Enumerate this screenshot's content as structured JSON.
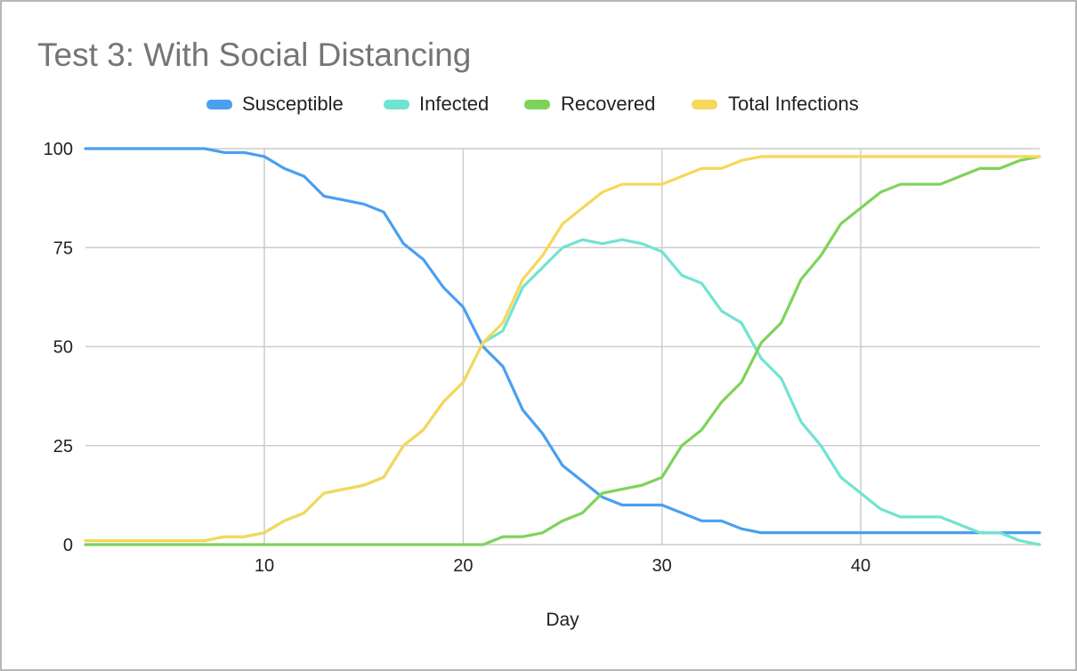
{
  "colors": {
    "susceptible": "#4a9ff0",
    "infected": "#71e3d1",
    "recovered": "#7dd35a",
    "total": "#f6d75a",
    "grid": "#cccccc",
    "frame": "#9e9e9e"
  },
  "chart_data": {
    "type": "line",
    "title": "Test 3: With Social Distancing",
    "xlabel": "Day",
    "ylabel": "",
    "xlim": [
      1,
      49
    ],
    "ylim": [
      0,
      100
    ],
    "x_ticks": [
      "10",
      "20",
      "30",
      "40"
    ],
    "y_ticks": [
      "0",
      "25",
      "50",
      "75",
      "100"
    ],
    "legend_position": "top",
    "grid": true,
    "x": [
      1,
      2,
      3,
      4,
      5,
      6,
      7,
      8,
      9,
      10,
      11,
      12,
      13,
      14,
      15,
      16,
      17,
      18,
      19,
      20,
      21,
      22,
      23,
      24,
      25,
      26,
      27,
      28,
      29,
      30,
      31,
      32,
      33,
      34,
      35,
      36,
      37,
      38,
      39,
      40,
      41,
      42,
      43,
      44,
      45,
      46,
      47,
      48,
      49
    ],
    "series": [
      {
        "name": "Susceptible",
        "values": [
          100,
          100,
          100,
          100,
          100,
          100,
          100,
          99,
          99,
          98,
          95,
          93,
          88,
          87,
          86,
          84,
          76,
          72,
          65,
          60,
          50,
          45,
          34,
          28,
          20,
          16,
          12,
          10,
          10,
          10,
          8,
          6,
          6,
          4,
          3,
          3,
          3,
          3,
          3,
          3,
          3,
          3,
          3,
          3,
          3,
          3,
          3,
          3,
          3
        ]
      },
      {
        "name": "Infected",
        "values": [
          1,
          1,
          1,
          1,
          1,
          1,
          1,
          2,
          2,
          3,
          6,
          8,
          13,
          14,
          15,
          17,
          25,
          29,
          36,
          41,
          51,
          54,
          65,
          70,
          75,
          77,
          76,
          77,
          76,
          74,
          68,
          66,
          59,
          56,
          47,
          42,
          31,
          25,
          17,
          13,
          9,
          7,
          7,
          7,
          5,
          3,
          3,
          1,
          0
        ]
      },
      {
        "name": "Recovered",
        "values": [
          0,
          0,
          0,
          0,
          0,
          0,
          0,
          0,
          0,
          0,
          0,
          0,
          0,
          0,
          0,
          0,
          0,
          0,
          0,
          0,
          0,
          2,
          2,
          3,
          6,
          8,
          13,
          14,
          15,
          17,
          25,
          29,
          36,
          41,
          51,
          56,
          67,
          73,
          81,
          85,
          89,
          91,
          91,
          91,
          93,
          95,
          95,
          97,
          98
        ]
      },
      {
        "name": "Total Infections",
        "values": [
          1,
          1,
          1,
          1,
          1,
          1,
          1,
          2,
          2,
          3,
          6,
          8,
          13,
          14,
          15,
          17,
          25,
          29,
          36,
          41,
          51,
          56,
          67,
          73,
          81,
          85,
          89,
          91,
          91,
          91,
          93,
          95,
          95,
          97,
          98,
          98,
          98,
          98,
          98,
          98,
          98,
          98,
          98,
          98,
          98,
          98,
          98,
          98,
          98
        ]
      }
    ]
  }
}
